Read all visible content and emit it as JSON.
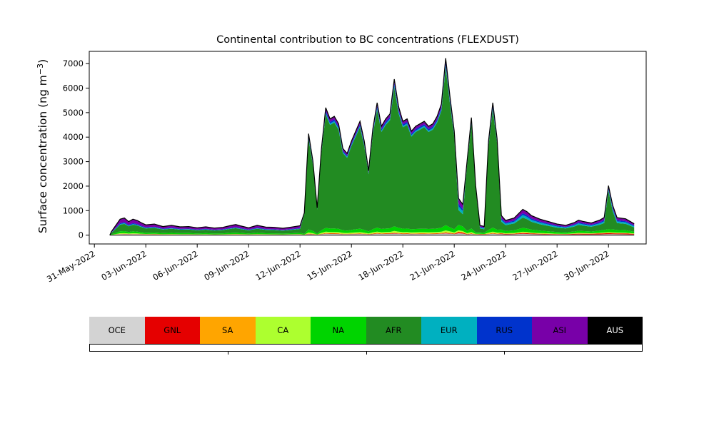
{
  "ylabel": {
    "prefix": "Surface concentration (ng m",
    "sup": "−3",
    "suffix": ")"
  },
  "chart_data": {
    "type": "area",
    "stacked": true,
    "title": "Continental contribution to BC concentrations (FLEXDUST)",
    "xlabel": "",
    "ylabel": "Surface concentration (ng m^-3)",
    "x_unit": "days since 31-May-2022 00:00",
    "grid": false,
    "legend_position": "bottom",
    "xlim": [
      -0.3,
      32.2
    ],
    "ylim": [
      -360,
      7500
    ],
    "yticks": [
      0,
      1000,
      2000,
      3000,
      4000,
      5000,
      6000,
      7000
    ],
    "xtick_positions": [
      0,
      3,
      6,
      9,
      12,
      15,
      18,
      21,
      24,
      27,
      30
    ],
    "xtick_labels": [
      "31-May-2022",
      "03-Jun-2022",
      "06-Jun-2022",
      "09-Jun-2022",
      "12-Jun-2022",
      "15-Jun-2022",
      "18-Jun-2022",
      "21-Jun-2022",
      "24-Jun-2022",
      "27-Jun-2022",
      "30-Jun-2022"
    ],
    "x": [
      0.9,
      1,
      1.25,
      1.5,
      1.75,
      2,
      2.25,
      2.5,
      2.75,
      3,
      3.5,
      4,
      4.5,
      5,
      5.5,
      6,
      6.5,
      7,
      7.5,
      8,
      8.25,
      8.5,
      9,
      9.5,
      10,
      10.5,
      11,
      11.5,
      12,
      12.25,
      12.5,
      12.75,
      13,
      13.25,
      13.5,
      13.75,
      14,
      14.25,
      14.5,
      14.75,
      15,
      15.25,
      15.5,
      15.75,
      16,
      16.25,
      16.5,
      16.75,
      17,
      17.25,
      17.5,
      17.75,
      18,
      18.25,
      18.5,
      18.75,
      19,
      19.25,
      19.5,
      19.75,
      20,
      20.25,
      20.5,
      20.75,
      21,
      21.25,
      21.5,
      21.75,
      22,
      22.25,
      22.5,
      22.75,
      23,
      23.25,
      23.5,
      23.75,
      24,
      24.5,
      25,
      25.25,
      25.5,
      26,
      26.5,
      27,
      27.5,
      28,
      28.25,
      28.5,
      29,
      29.5,
      29.75,
      30,
      30.25,
      30.5,
      31,
      31.25,
      31.5
    ],
    "series": [
      {
        "name": "OCE",
        "color": "#d3d3d3",
        "label_color": "#000000",
        "values": [
          0,
          9,
          24,
          39,
          42,
          33,
          39,
          36,
          30,
          25,
          27,
          21,
          24,
          20,
          21,
          18,
          20,
          17,
          19,
          24,
          26,
          23,
          18,
          24,
          20,
          19,
          17,
          20,
          23,
          9,
          41,
          30,
          11,
          35,
          52,
          47,
          48,
          45,
          35,
          33,
          38,
          42,
          46,
          38,
          26,
          43,
          54,
          44,
          47,
          49,
          63,
          52,
          46,
          47,
          42,
          44,
          45,
          46,
          44,
          45,
          48,
          53,
          72,
          56,
          42,
          75,
          63,
          30,
          48,
          20,
          20,
          18,
          38,
          54,
          39,
          40,
          30,
          35,
          53,
          48,
          40,
          33,
          28,
          23,
          20,
          25,
          30,
          28,
          24,
          30,
          35,
          40,
          40,
          35,
          33,
          28,
          23
        ]
      },
      {
        "name": "GNL",
        "color": "#e50000",
        "label_color": "#000000",
        "values": [
          0,
          2,
          4,
          7,
          7,
          6,
          7,
          6,
          5,
          4,
          5,
          4,
          4,
          3,
          4,
          3,
          3,
          3,
          3,
          4,
          4,
          4,
          3,
          4,
          3,
          3,
          3,
          3,
          4,
          3,
          12,
          9,
          3,
          11,
          15,
          14,
          14,
          14,
          11,
          10,
          11,
          13,
          14,
          11,
          8,
          13,
          16,
          13,
          14,
          15,
          19,
          16,
          14,
          14,
          13,
          13,
          14,
          14,
          13,
          14,
          14,
          16,
          21,
          17,
          13,
          45,
          38,
          9,
          14,
          6,
          12,
          11,
          11,
          16,
          12,
          24,
          18,
          21,
          32,
          29,
          24,
          20,
          17,
          14,
          12,
          25,
          30,
          28,
          30,
          35,
          40,
          40,
          35,
          35,
          35,
          30,
          25
        ]
      },
      {
        "name": "SA",
        "color": "#ffa500",
        "label_color": "#000000",
        "values": [
          0,
          2,
          6,
          10,
          11,
          8,
          10,
          9,
          8,
          6,
          7,
          5,
          6,
          5,
          5,
          5,
          5,
          4,
          5,
          6,
          6,
          6,
          5,
          6,
          5,
          5,
          4,
          5,
          6,
          4,
          16,
          12,
          4,
          14,
          21,
          19,
          19,
          18,
          14,
          13,
          15,
          17,
          18,
          15,
          10,
          17,
          21,
          18,
          19,
          20,
          25,
          21,
          18,
          19,
          17,
          18,
          18,
          18,
          18,
          18,
          19,
          21,
          29,
          22,
          17,
          30,
          25,
          12,
          19,
          8,
          8,
          7,
          15,
          21,
          16,
          16,
          12,
          14,
          21,
          19,
          16,
          13,
          11,
          9,
          8,
          10,
          12,
          11,
          10,
          12,
          14,
          15,
          15,
          14,
          13,
          11,
          9
        ]
      },
      {
        "name": "CA",
        "color": "#adff2f",
        "label_color": "#000000",
        "values": [
          0,
          5,
          12,
          20,
          21,
          17,
          20,
          18,
          15,
          13,
          14,
          11,
          12,
          10,
          11,
          9,
          10,
          9,
          10,
          12,
          13,
          11,
          9,
          12,
          10,
          10,
          8,
          10,
          11,
          9,
          41,
          30,
          11,
          35,
          52,
          47,
          48,
          45,
          35,
          33,
          38,
          42,
          46,
          38,
          26,
          43,
          54,
          44,
          47,
          49,
          63,
          52,
          46,
          47,
          42,
          44,
          45,
          46,
          44,
          45,
          48,
          53,
          72,
          56,
          42,
          45,
          38,
          30,
          48,
          20,
          12,
          11,
          38,
          54,
          39,
          24,
          18,
          21,
          32,
          29,
          24,
          20,
          17,
          14,
          12,
          15,
          18,
          17,
          14,
          18,
          21,
          25,
          25,
          21,
          20,
          17,
          14
        ]
      },
      {
        "name": "NA",
        "color": "#00d400",
        "label_color": "#000000",
        "values": [
          0,
          18,
          48,
          78,
          84,
          66,
          78,
          72,
          60,
          50,
          54,
          42,
          48,
          41,
          42,
          36,
          41,
          35,
          38,
          48,
          52,
          46,
          36,
          48,
          40,
          38,
          34,
          40,
          46,
          27,
          123,
          90,
          33,
          105,
          155,
          141,
          144,
          135,
          105,
          99,
          114,
          126,
          138,
          114,
          78,
          129,
          161,
          132,
          141,
          147,
          189,
          156,
          138,
          141,
          126,
          132,
          135,
          138,
          132,
          135,
          144,
          159,
          215,
          168,
          126,
          225,
          188,
          90,
          143,
          60,
          60,
          53,
          114,
          161,
          117,
          120,
          90,
          105,
          158,
          143,
          120,
          98,
          83,
          68,
          60,
          75,
          90,
          83,
          72,
          90,
          105,
          120,
          120,
          105,
          98,
          83,
          68
        ]
      },
      {
        "name": "AFR",
        "color": "#228b22",
        "label_color": "#000000",
        "values": [
          0,
          63,
          168,
          273,
          294,
          231,
          273,
          252,
          210,
          176,
          189,
          147,
          168,
          143,
          147,
          126,
          143,
          122,
          134,
          168,
          181,
          160,
          126,
          168,
          139,
          134,
          118,
          139,
          160,
          810,
          3690,
          2700,
          990,
          3150,
          4635,
          4230,
          4320,
          4050,
          3150,
          2970,
          3420,
          3780,
          4140,
          3420,
          2340,
          3870,
          4815,
          3960,
          4230,
          4410,
          5670,
          4680,
          4140,
          4230,
          3780,
          3960,
          4050,
          4140,
          3960,
          4050,
          4320,
          4770,
          6435,
          5040,
          3780,
          600,
          500,
          2700,
          4275,
          1800,
          160,
          140,
          3420,
          4815,
          3510,
          320,
          240,
          280,
          420,
          380,
          320,
          260,
          220,
          180,
          160,
          200,
          240,
          220,
          192,
          240,
          280,
          1560,
          740,
          280,
          260,
          220,
          180
        ]
      },
      {
        "name": "EUR",
        "color": "#00b0c0",
        "label_color": "#000000",
        "values": [
          0,
          6,
          16,
          26,
          28,
          22,
          26,
          24,
          20,
          17,
          18,
          14,
          16,
          14,
          14,
          12,
          14,
          12,
          13,
          16,
          17,
          15,
          12,
          16,
          13,
          13,
          11,
          13,
          15,
          11,
          49,
          36,
          13,
          42,
          62,
          56,
          58,
          54,
          42,
          40,
          46,
          50,
          55,
          46,
          31,
          52,
          64,
          53,
          56,
          59,
          76,
          62,
          55,
          56,
          50,
          53,
          54,
          55,
          53,
          54,
          58,
          64,
          86,
          67,
          50,
          150,
          125,
          36,
          57,
          24,
          40,
          35,
          46,
          64,
          47,
          80,
          60,
          70,
          105,
          95,
          80,
          65,
          55,
          45,
          40,
          50,
          60,
          55,
          48,
          60,
          70,
          60,
          80,
          70,
          65,
          55,
          45
        ]
      },
      {
        "name": "RUS",
        "color": "#0033cc",
        "label_color": "#000000",
        "values": [
          0,
          9,
          24,
          39,
          42,
          33,
          39,
          36,
          30,
          25,
          27,
          21,
          24,
          20,
          21,
          18,
          20,
          17,
          19,
          24,
          26,
          23,
          18,
          24,
          20,
          19,
          17,
          20,
          23,
          14,
          62,
          45,
          17,
          53,
          77,
          71,
          72,
          68,
          53,
          50,
          57,
          63,
          69,
          57,
          39,
          65,
          80,
          66,
          71,
          74,
          95,
          78,
          69,
          71,
          63,
          66,
          68,
          69,
          66,
          68,
          72,
          80,
          107,
          84,
          63,
          105,
          88,
          45,
          71,
          30,
          28,
          25,
          57,
          80,
          59,
          56,
          42,
          49,
          74,
          67,
          56,
          46,
          39,
          32,
          28,
          35,
          42,
          39,
          34,
          42,
          49,
          50,
          55,
          49,
          46,
          39,
          32
        ]
      },
      {
        "name": "ASI",
        "color": "#7800a8",
        "label_color": "#000000",
        "values": [
          0,
          33,
          88,
          143,
          154,
          121,
          143,
          132,
          110,
          92,
          99,
          77,
          88,
          75,
          77,
          66,
          75,
          64,
          70,
          88,
          95,
          84,
          66,
          88,
          73,
          70,
          62,
          73,
          84,
          18,
          82,
          60,
          22,
          70,
          103,
          94,
          96,
          90,
          70,
          66,
          76,
          84,
          92,
          76,
          52,
          86,
          107,
          88,
          94,
          98,
          126,
          104,
          92,
          94,
          84,
          88,
          90,
          92,
          88,
          90,
          96,
          106,
          143,
          112,
          84,
          195,
          163,
          60,
          95,
          40,
          52,
          46,
          76,
          107,
          78,
          104,
          78,
          91,
          137,
          124,
          104,
          85,
          72,
          59,
          52,
          65,
          78,
          72,
          62,
          78,
          91,
          90,
          85,
          91,
          85,
          72,
          59
        ]
      },
      {
        "name": "AUS",
        "color": "#000000",
        "label_color": "#ffffff",
        "values": [
          0,
          4,
          10,
          16,
          18,
          14,
          16,
          15,
          13,
          11,
          11,
          9,
          10,
          9,
          9,
          8,
          9,
          7,
          8,
          10,
          11,
          10,
          8,
          10,
          8,
          8,
          7,
          8,
          10,
          5,
          25,
          18,
          7,
          21,
          31,
          28,
          29,
          27,
          21,
          20,
          23,
          25,
          28,
          23,
          16,
          26,
          32,
          26,
          28,
          29,
          38,
          31,
          28,
          28,
          25,
          26,
          27,
          28,
          26,
          27,
          29,
          32,
          43,
          34,
          25,
          30,
          25,
          18,
          29,
          12,
          8,
          7,
          23,
          32,
          23,
          16,
          12,
          14,
          21,
          19,
          16,
          13,
          11,
          9,
          8,
          10,
          12,
          11,
          10,
          12,
          14,
          20,
          15,
          14,
          13,
          11,
          9
        ]
      }
    ]
  }
}
